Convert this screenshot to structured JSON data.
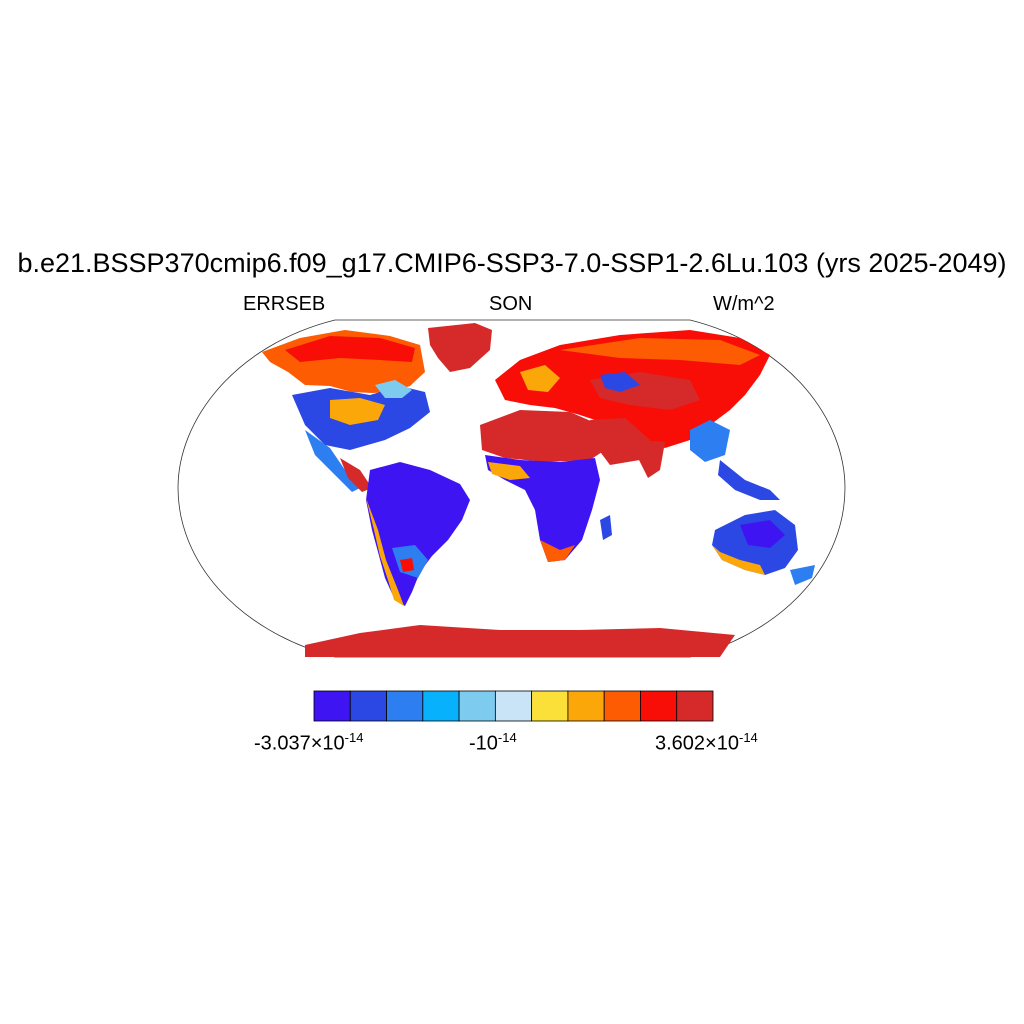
{
  "header": {
    "title": "b.e21.BSSP370cmip6.f09_g17.CMIP6-SSP3-7.0-SSP1-2.6Lu.103 (yrs 2025-2049)",
    "left": "ERRSEB",
    "center": "SON",
    "right": "W/m^2"
  },
  "colorbar": {
    "colors": [
      "#3f14f2",
      "#2c48e4",
      "#2d7ef0",
      "#08b1fb",
      "#7ecbf0",
      "#c8e4f6",
      "#fbe03a",
      "#fca709",
      "#fd5c03",
      "#f80e07",
      "#d62a2a"
    ],
    "labels": {
      "min": {
        "mantissa": "-3.037×10",
        "exp": "-14"
      },
      "mid": {
        "mantissa": "-10",
        "exp": "-14"
      },
      "max": {
        "mantissa": "3.602×10",
        "exp": "-14"
      }
    }
  },
  "map": {
    "projection": "robinson",
    "background": "#ffffff",
    "coastline_color": "#000000"
  }
}
